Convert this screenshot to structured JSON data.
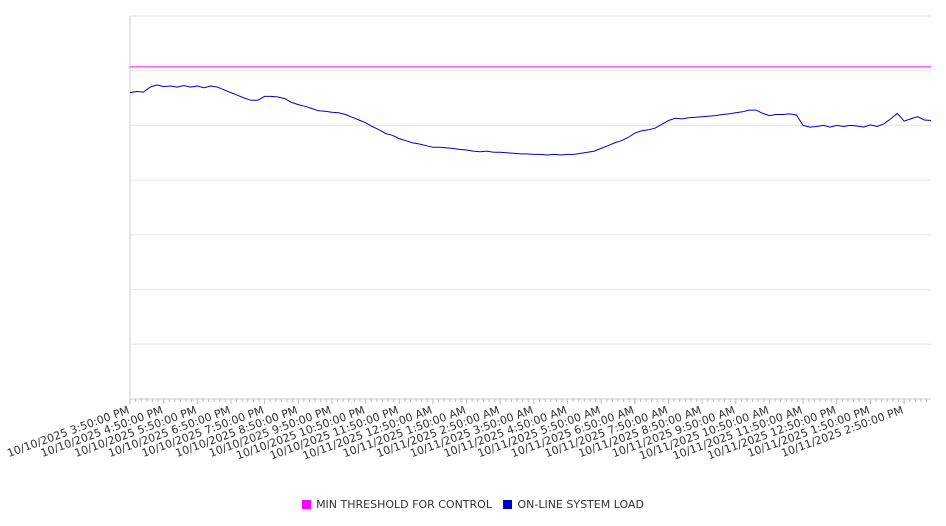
{
  "chart_data": {
    "type": "line",
    "title": "",
    "xlabel": "",
    "ylabel": "",
    "ylim": [
      0,
      7
    ],
    "grid": true,
    "legend_position": "bottom",
    "x_ticks": [
      "10/10/2025 3:50:00 PM",
      "10/10/2025 4:50:00 PM",
      "10/10/2025 5:50:00 PM",
      "10/10/2025 6:50:00 PM",
      "10/10/2025 7:50:00 PM",
      "10/10/2025 8:50:00 PM",
      "10/10/2025 9:50:00 PM",
      "10/10/2025 10:50:00 PM",
      "10/10/2025 11:50:00 PM",
      "10/11/2025 12:50:00 AM",
      "10/11/2025 1:50:00 AM",
      "10/11/2025 2:50:00 AM",
      "10/11/2025 3:50:00 AM",
      "10/11/2025 4:50:00 AM",
      "10/11/2025 5:50:00 AM",
      "10/11/2025 6:50:00 AM",
      "10/11/2025 7:50:00 AM",
      "10/11/2025 8:50:00 AM",
      "10/11/2025 9:50:00 AM",
      "10/11/2025 10:50:00 AM",
      "10/11/2025 11:50:00 AM",
      "10/11/2025 12:50:00 PM",
      "10/11/2025 1:50:00 PM",
      "10/11/2025 2:50:00 PM"
    ],
    "series": [
      {
        "name": "MIN THRESHOLD FOR CONTROL",
        "color": "#ff00ff",
        "points": [
          [
            0,
            6.07
          ],
          [
            23.8,
            6.07
          ]
        ]
      },
      {
        "name": "ON-LINE SYSTEM LOAD",
        "color": "#0000cc",
        "points": [
          [
            0,
            5.6
          ],
          [
            0.2,
            5.62
          ],
          [
            0.4,
            5.61
          ],
          [
            0.6,
            5.7
          ],
          [
            0.8,
            5.74
          ],
          [
            1.0,
            5.71
          ],
          [
            1.2,
            5.72
          ],
          [
            1.4,
            5.7
          ],
          [
            1.6,
            5.73
          ],
          [
            1.8,
            5.7
          ],
          [
            2.0,
            5.72
          ],
          [
            2.2,
            5.69
          ],
          [
            2.4,
            5.72
          ],
          [
            2.6,
            5.7
          ],
          [
            2.8,
            5.65
          ],
          [
            3.0,
            5.6
          ],
          [
            3.2,
            5.55
          ],
          [
            3.4,
            5.5
          ],
          [
            3.6,
            5.46
          ],
          [
            3.8,
            5.46
          ],
          [
            4.0,
            5.53
          ],
          [
            4.2,
            5.53
          ],
          [
            4.4,
            5.52
          ],
          [
            4.6,
            5.49
          ],
          [
            4.8,
            5.42
          ],
          [
            5.0,
            5.38
          ],
          [
            5.2,
            5.35
          ],
          [
            5.4,
            5.31
          ],
          [
            5.6,
            5.27
          ],
          [
            5.8,
            5.26
          ],
          [
            6.0,
            5.24
          ],
          [
            6.2,
            5.23
          ],
          [
            6.4,
            5.2
          ],
          [
            6.6,
            5.15
          ],
          [
            6.8,
            5.1
          ],
          [
            7.0,
            5.05
          ],
          [
            7.2,
            4.98
          ],
          [
            7.4,
            4.92
          ],
          [
            7.6,
            4.85
          ],
          [
            7.8,
            4.82
          ],
          [
            8.0,
            4.76
          ],
          [
            8.2,
            4.72
          ],
          [
            8.4,
            4.68
          ],
          [
            8.6,
            4.66
          ],
          [
            8.8,
            4.63
          ],
          [
            9.0,
            4.6
          ],
          [
            9.2,
            4.6
          ],
          [
            9.4,
            4.59
          ],
          [
            9.6,
            4.58
          ],
          [
            9.8,
            4.56
          ],
          [
            10.0,
            4.55
          ],
          [
            10.2,
            4.53
          ],
          [
            10.4,
            4.52
          ],
          [
            10.6,
            4.53
          ],
          [
            10.8,
            4.51
          ],
          [
            11.0,
            4.51
          ],
          [
            11.2,
            4.5
          ],
          [
            11.4,
            4.49
          ],
          [
            11.6,
            4.48
          ],
          [
            11.8,
            4.48
          ],
          [
            12.0,
            4.47
          ],
          [
            12.2,
            4.47
          ],
          [
            12.4,
            4.46
          ],
          [
            12.6,
            4.47
          ],
          [
            12.8,
            4.46
          ],
          [
            13.0,
            4.47
          ],
          [
            13.2,
            4.47
          ],
          [
            13.4,
            4.49
          ],
          [
            13.6,
            4.51
          ],
          [
            13.8,
            4.53
          ],
          [
            14.0,
            4.58
          ],
          [
            14.2,
            4.63
          ],
          [
            14.4,
            4.68
          ],
          [
            14.6,
            4.72
          ],
          [
            14.8,
            4.78
          ],
          [
            15.0,
            4.86
          ],
          [
            15.2,
            4.9
          ],
          [
            15.4,
            4.92
          ],
          [
            15.6,
            4.95
          ],
          [
            15.8,
            5.02
          ],
          [
            16.0,
            5.09
          ],
          [
            16.2,
            5.13
          ],
          [
            16.4,
            5.12
          ],
          [
            16.6,
            5.14
          ],
          [
            16.8,
            5.15
          ],
          [
            17.0,
            5.16
          ],
          [
            17.2,
            5.17
          ],
          [
            17.4,
            5.18
          ],
          [
            17.6,
            5.2
          ],
          [
            17.8,
            5.21
          ],
          [
            18.0,
            5.23
          ],
          [
            18.2,
            5.25
          ],
          [
            18.4,
            5.28
          ],
          [
            18.6,
            5.28
          ],
          [
            18.8,
            5.22
          ],
          [
            19.0,
            5.18
          ],
          [
            19.2,
            5.2
          ],
          [
            19.4,
            5.2
          ],
          [
            19.6,
            5.21
          ],
          [
            19.8,
            5.19
          ],
          [
            20.0,
            5.0
          ],
          [
            20.2,
            4.97
          ],
          [
            20.4,
            4.98
          ],
          [
            20.6,
            5.0
          ],
          [
            20.8,
            4.97
          ],
          [
            21.0,
            5.0
          ],
          [
            21.2,
            4.98
          ],
          [
            21.4,
            5.0
          ],
          [
            21.6,
            4.99
          ],
          [
            21.8,
            4.97
          ],
          [
            22.0,
            5.01
          ],
          [
            22.2,
            4.98
          ],
          [
            22.4,
            5.03
          ],
          [
            22.6,
            5.12
          ],
          [
            22.8,
            5.22
          ],
          [
            23.0,
            5.08
          ],
          [
            23.2,
            5.12
          ],
          [
            23.4,
            5.16
          ],
          [
            23.6,
            5.1
          ],
          [
            23.8,
            5.09
          ]
        ]
      }
    ]
  }
}
